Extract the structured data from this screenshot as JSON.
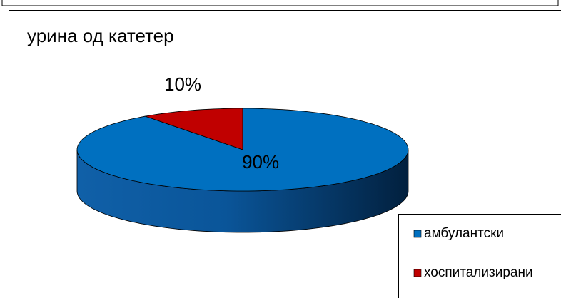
{
  "chart_data": {
    "type": "pie",
    "title": "урина од катетер",
    "categories": [
      "амбулантски",
      "хоспитализирани"
    ],
    "values": [
      90,
      10
    ],
    "value_labels": [
      "90%",
      "10%"
    ],
    "colors": [
      "#0070c0",
      "#c00000"
    ],
    "legend": "right"
  }
}
